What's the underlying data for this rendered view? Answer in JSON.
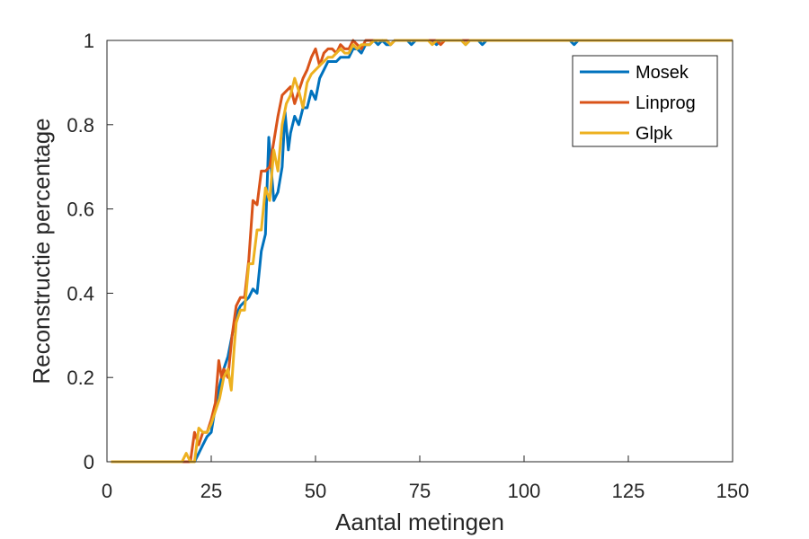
{
  "chart_data": {
    "type": "line",
    "title": "",
    "xlabel": "Aantal metingen",
    "ylabel": "Reconstructie percentage",
    "xlim": [
      0,
      150
    ],
    "ylim": [
      0,
      1
    ],
    "xticks": [
      "0",
      "25",
      "50",
      "75",
      "100",
      "125",
      "150"
    ],
    "yticks": [
      "0",
      "0.2",
      "0.4",
      "0.6",
      "0.8",
      "1"
    ],
    "grid": false,
    "legend_position": "top-right",
    "series": [
      {
        "name": "Mosek",
        "color": "#0072BD",
        "points": [
          [
            1,
            0
          ],
          [
            19,
            0
          ],
          [
            20,
            0
          ],
          [
            21,
            0
          ],
          [
            22,
            0.02
          ],
          [
            23,
            0.04
          ],
          [
            24,
            0.06
          ],
          [
            25,
            0.07
          ],
          [
            26,
            0.13
          ],
          [
            27,
            0.18
          ],
          [
            28,
            0.22
          ],
          [
            29,
            0.25
          ],
          [
            30,
            0.3
          ],
          [
            31,
            0.35
          ],
          [
            32,
            0.37
          ],
          [
            33,
            0.38
          ],
          [
            34,
            0.39
          ],
          [
            35,
            0.41
          ],
          [
            36,
            0.4
          ],
          [
            37,
            0.5
          ],
          [
            38,
            0.54
          ],
          [
            38.8,
            0.77
          ],
          [
            39.5,
            0.68
          ],
          [
            40,
            0.62
          ],
          [
            41,
            0.64
          ],
          [
            42,
            0.7
          ],
          [
            42.7,
            0.83
          ],
          [
            43.5,
            0.74
          ],
          [
            44,
            0.78
          ],
          [
            45,
            0.82
          ],
          [
            46,
            0.8
          ],
          [
            47,
            0.84
          ],
          [
            48,
            0.84
          ],
          [
            49,
            0.88
          ],
          [
            50,
            0.86
          ],
          [
            51,
            0.91
          ],
          [
            52,
            0.93
          ],
          [
            53,
            0.95
          ],
          [
            54,
            0.95
          ],
          [
            55,
            0.95
          ],
          [
            56,
            0.96
          ],
          [
            57,
            0.96
          ],
          [
            58,
            0.96
          ],
          [
            59,
            0.98
          ],
          [
            60,
            0.98
          ],
          [
            61,
            0.97
          ],
          [
            62,
            0.99
          ],
          [
            63,
            0.99
          ],
          [
            64,
            1.0
          ],
          [
            65,
            0.99
          ],
          [
            66,
            1.0
          ],
          [
            67,
            0.99
          ],
          [
            68,
            0.99
          ],
          [
            69,
            1.0
          ],
          [
            70,
            1.0
          ],
          [
            72,
            1.0
          ],
          [
            73,
            0.99
          ],
          [
            74,
            1.0
          ],
          [
            78,
            1.0
          ],
          [
            79,
            0.99
          ],
          [
            80,
            1.0
          ],
          [
            85,
            1.0
          ],
          [
            86,
            0.99
          ],
          [
            87,
            1.0
          ],
          [
            89,
            1.0
          ],
          [
            90,
            0.99
          ],
          [
            91,
            1.0
          ],
          [
            111,
            1.0
          ],
          [
            112,
            0.99
          ],
          [
            113,
            1.0
          ],
          [
            150,
            1.0
          ]
        ]
      },
      {
        "name": "Linprog",
        "color": "#D95319",
        "points": [
          [
            1,
            0
          ],
          [
            18,
            0
          ],
          [
            19,
            0
          ],
          [
            20,
            0
          ],
          [
            21,
            0.07
          ],
          [
            22,
            0.04
          ],
          [
            23,
            0.07
          ],
          [
            24,
            0.07
          ],
          [
            25,
            0.1
          ],
          [
            26,
            0.14
          ],
          [
            26.8,
            0.24
          ],
          [
            27.5,
            0.2
          ],
          [
            28,
            0.22
          ],
          [
            29,
            0.2
          ],
          [
            30,
            0.3
          ],
          [
            31,
            0.37
          ],
          [
            32,
            0.39
          ],
          [
            33,
            0.39
          ],
          [
            34,
            0.48
          ],
          [
            35,
            0.62
          ],
          [
            36,
            0.61
          ],
          [
            37,
            0.69
          ],
          [
            38,
            0.69
          ],
          [
            39,
            0.7
          ],
          [
            40,
            0.76
          ],
          [
            41,
            0.82
          ],
          [
            42,
            0.87
          ],
          [
            43,
            0.88
          ],
          [
            44,
            0.89
          ],
          [
            45,
            0.85
          ],
          [
            46,
            0.88
          ],
          [
            47,
            0.91
          ],
          [
            48,
            0.93
          ],
          [
            49,
            0.96
          ],
          [
            50,
            0.98
          ],
          [
            51,
            0.94
          ],
          [
            52,
            0.97
          ],
          [
            53,
            0.98
          ],
          [
            54,
            0.98
          ],
          [
            55,
            0.97
          ],
          [
            56,
            0.99
          ],
          [
            57,
            0.98
          ],
          [
            58,
            0.98
          ],
          [
            59,
            1.0
          ],
          [
            60,
            0.99
          ],
          [
            61,
            0.98
          ],
          [
            62,
            1.0
          ],
          [
            63,
            1.0
          ],
          [
            64,
            1.0
          ],
          [
            65,
            1.0
          ],
          [
            66,
            1.0
          ],
          [
            67,
            1.0
          ],
          [
            68,
            0.99
          ],
          [
            69,
            1.0
          ],
          [
            79,
            1.0
          ],
          [
            80,
            0.99
          ],
          [
            81,
            1.0
          ],
          [
            150,
            1.0
          ]
        ]
      },
      {
        "name": "Glpk",
        "color": "#EDB120",
        "points": [
          [
            1,
            0
          ],
          [
            18,
            0
          ],
          [
            19,
            0.02
          ],
          [
            20,
            0
          ],
          [
            21,
            0
          ],
          [
            22,
            0.08
          ],
          [
            23,
            0.07
          ],
          [
            24,
            0.07
          ],
          [
            25,
            0.09
          ],
          [
            26,
            0.12
          ],
          [
            27,
            0.15
          ],
          [
            28,
            0.2
          ],
          [
            29,
            0.22
          ],
          [
            29.8,
            0.17
          ],
          [
            30.5,
            0.27
          ],
          [
            31,
            0.33
          ],
          [
            32,
            0.36
          ],
          [
            33,
            0.36
          ],
          [
            34,
            0.47
          ],
          [
            35,
            0.47
          ],
          [
            36,
            0.55
          ],
          [
            37,
            0.55
          ],
          [
            38,
            0.65
          ],
          [
            39,
            0.62
          ],
          [
            40,
            0.74
          ],
          [
            41,
            0.69
          ],
          [
            42,
            0.8
          ],
          [
            43,
            0.85
          ],
          [
            44,
            0.87
          ],
          [
            45,
            0.91
          ],
          [
            46,
            0.88
          ],
          [
            47,
            0.84
          ],
          [
            48,
            0.9
          ],
          [
            49,
            0.92
          ],
          [
            50,
            0.93
          ],
          [
            51,
            0.94
          ],
          [
            52,
            0.95
          ],
          [
            53,
            0.96
          ],
          [
            54,
            0.96
          ],
          [
            55,
            0.97
          ],
          [
            56,
            0.98
          ],
          [
            57,
            0.97
          ],
          [
            58,
            0.97
          ],
          [
            59,
            0.99
          ],
          [
            60,
            0.98
          ],
          [
            61,
            0.99
          ],
          [
            62,
            0.99
          ],
          [
            63,
            0.99
          ],
          [
            64,
            1.0
          ],
          [
            65,
            1.0
          ],
          [
            66,
            1.0
          ],
          [
            67,
            1.0
          ],
          [
            68,
            0.99
          ],
          [
            69,
            1.0
          ],
          [
            77,
            1.0
          ],
          [
            78,
            0.99
          ],
          [
            79,
            1.0
          ],
          [
            85,
            1.0
          ],
          [
            86,
            0.99
          ],
          [
            87,
            1.0
          ],
          [
            150,
            1.0
          ]
        ]
      }
    ]
  }
}
